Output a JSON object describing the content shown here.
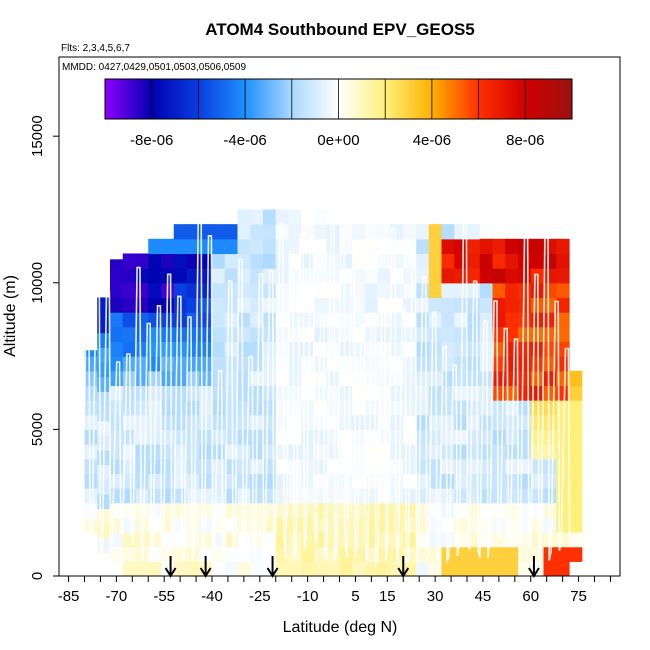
{
  "chart_data": {
    "type": "heatmap",
    "title": "ATOM4 Southbound EPV_GEOS5",
    "subtitle_flights": "Flts: 2,3,4,5,6,7",
    "subtitle_dates": "MMDD: 0427,0429,0501,0503,0506,0509",
    "xlabel": "Latitude (deg N)",
    "ylabel": "Altitude (m)",
    "xlim": [
      -88,
      88
    ],
    "ylim": [
      0,
      17700
    ],
    "x_ticks": [
      -85,
      -70,
      -55,
      -40,
      -25,
      -10,
      5,
      15,
      30,
      45,
      60,
      75
    ],
    "x_tick_labels": [
      "-85",
      "-70",
      "-55",
      "-40",
      "-25",
      "-10",
      "5",
      "15",
      "30",
      "45",
      "60",
      "75"
    ],
    "y_ticks": [
      0,
      5000,
      10000,
      15000
    ],
    "y_tick_labels": [
      "0",
      "5000",
      "10000",
      "15000"
    ],
    "colorbar": {
      "min": -1e-05,
      "max": 1e-05,
      "ticks": [
        -8e-06,
        -4e-06,
        0,
        4e-06,
        8e-06
      ],
      "tick_labels": [
        "-8e-06",
        "-4e-06",
        "0e+00",
        "4e-06",
        "8e-06"
      ],
      "colors": [
        "#8f00ff",
        "#0000b0",
        "#0a3de0",
        "#1e90ff",
        "#aad8ff",
        "#ffffff",
        "#fff07a",
        "#ffb000",
        "#ff3000",
        "#d00000",
        "#9c1010"
      ]
    },
    "arrow_latitudes": [
      -53,
      -42,
      -21,
      20,
      61
    ],
    "coverage": {
      "lat_bins_start": -84,
      "lat_bin_width": 4,
      "top_altitudes_m": [
        3000,
        7700,
        9500,
        10800,
        11000,
        11000,
        11500,
        11500,
        12000,
        12000,
        12000,
        12000,
        12000,
        12500,
        12500,
        12500,
        12500,
        12500,
        12500,
        12500,
        12500,
        12000,
        12000,
        12000,
        12000,
        12000,
        12000,
        12000,
        12000,
        12000,
        12000,
        12000,
        11500,
        11500,
        11500,
        11500,
        11500,
        11500,
        11500,
        7000
      ],
      "bottom_altitudes_m": [
        3000,
        1500,
        800,
        0,
        0,
        0,
        0,
        0,
        0,
        0,
        0,
        0,
        0,
        0,
        0,
        0,
        0,
        0,
        0,
        0,
        0,
        0,
        0,
        0,
        0,
        0,
        0,
        0,
        0,
        0,
        0,
        0,
        0,
        0,
        0,
        0,
        0,
        0,
        0,
        500
      ]
    },
    "features": [
      {
        "name": "southern stratospheric low",
        "lat_range": [
          -80,
          -50
        ],
        "alt_range": [
          9000,
          11000
        ],
        "value": -9e-06
      },
      {
        "name": "northern upper high",
        "lat_range": [
          30,
          70
        ],
        "alt_range": [
          10000,
          11500
        ],
        "value": 8e-06
      },
      {
        "name": "northern mid high",
        "lat_range": [
          50,
          70
        ],
        "alt_range": [
          6000,
          10000
        ],
        "value": 6e-06
      },
      {
        "name": "tropical neutral band",
        "lat_range": [
          -20,
          20
        ],
        "alt_range": [
          0,
          12000
        ],
        "value": -5e-07
      }
    ],
    "flight_track": "white vertical profiles (ascents and descents) spanning latitudes -84 to 72 between 0 and ~12400 m",
    "grid": false,
    "legend_position": "top"
  }
}
